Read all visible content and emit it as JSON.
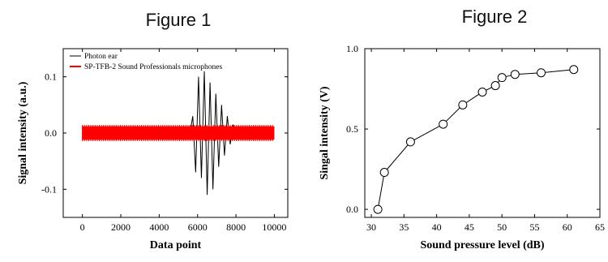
{
  "figure1": {
    "title": "Figure 1"
  },
  "figure2": {
    "title": "Figure 2"
  },
  "chart_data": [
    {
      "type": "line",
      "xlabel": "Data point",
      "ylabel": "Signal intensity (a.u.)",
      "xlim": [
        -1000,
        10700
      ],
      "ylim": [
        -0.15,
        0.15
      ],
      "x_ticks": [
        0,
        2000,
        4000,
        6000,
        8000,
        10000
      ],
      "x_tick_labels": [
        "0",
        "2000",
        "4000",
        "6000",
        "8000",
        "10000"
      ],
      "y_ticks": [
        -0.1,
        0.0,
        0.1
      ],
      "y_tick_labels": [
        "-0.1",
        "0.0",
        "0.1"
      ],
      "legend": {
        "placement": "top-left"
      },
      "series": [
        {
          "name": "Photon ear",
          "color": "#000000",
          "x": [
            0,
            5600,
            5750,
            5900,
            6050,
            6200,
            6350,
            6500,
            6650,
            6800,
            6950,
            7100,
            7250,
            7400,
            7550,
            7700,
            7850,
            8000,
            8200,
            10000
          ],
          "values": [
            0,
            0,
            0.03,
            -0.07,
            0.1,
            -0.08,
            0.11,
            -0.11,
            0.09,
            -0.1,
            0.07,
            -0.06,
            0.05,
            -0.04,
            0.03,
            -0.02,
            0.015,
            -0.01,
            0,
            0
          ]
        },
        {
          "name": "SP-TFB-2 Sound Professionals microphones",
          "color": "#ff0000",
          "x": [
            0,
            10000
          ],
          "band": [
            -0.012,
            0.012
          ]
        }
      ]
    },
    {
      "type": "line",
      "xlabel": "Sound pressure level (dB)",
      "ylabel": "Singal intensity (V)",
      "xlim": [
        29,
        65
      ],
      "ylim": [
        -0.05,
        1.0
      ],
      "x_ticks": [
        30,
        35,
        40,
        45,
        50,
        55,
        60,
        65
      ],
      "x_tick_labels": [
        "30",
        "35",
        "40",
        "45",
        "50",
        "55",
        "60",
        "65"
      ],
      "y_ticks": [
        0.0,
        0.5,
        1.0
      ],
      "y_tick_labels": [
        "0.0",
        "0.5",
        "1.0"
      ],
      "series": [
        {
          "marker": "open-circle",
          "color": "#000000",
          "x": [
            31,
            32,
            36,
            41,
            44,
            47,
            49,
            50,
            52,
            56,
            61
          ],
          "values": [
            0.0,
            0.23,
            0.42,
            0.53,
            0.65,
            0.73,
            0.77,
            0.82,
            0.84,
            0.85,
            0.87
          ]
        }
      ]
    }
  ]
}
